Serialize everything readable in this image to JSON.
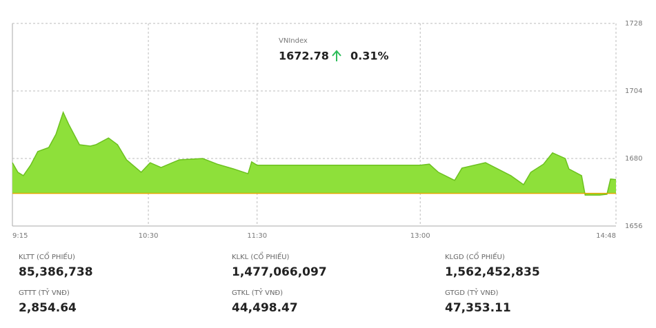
{
  "chart_data": {
    "type": "area",
    "title": "VNIndex",
    "last_value": "1672.78",
    "change": "0.31%",
    "x": [
      "9:15",
      "9:18",
      "9:21",
      "9:25",
      "9:29",
      "9:35",
      "9:39",
      "9:43",
      "9:46",
      "9:52",
      "9:58",
      "10:01",
      "10:08",
      "10:13",
      "10:18",
      "10:26",
      "10:31",
      "10:37",
      "10:47",
      "11:00",
      "11:08",
      "11:17",
      "11:25",
      "11:27",
      "11:30",
      "13:00",
      "13:05",
      "13:10",
      "13:19",
      "13:23",
      "13:36",
      "13:50",
      "13:57",
      "14:01",
      "14:08",
      "14:13",
      "14:20",
      "14:22",
      "14:29",
      "14:31",
      "14:39",
      "14:43",
      "14:45",
      "14:48"
    ],
    "values": [
      1678.5,
      1675.1,
      1673.9,
      1677.6,
      1682.5,
      1683.9,
      1688.6,
      1696.4,
      1692.2,
      1684.9,
      1684.4,
      1684.9,
      1687.3,
      1684.9,
      1679.5,
      1675.1,
      1678.5,
      1676.8,
      1679.5,
      1680.0,
      1678.0,
      1676.3,
      1674.6,
      1678.8,
      1677.6,
      1677.6,
      1678.0,
      1675.1,
      1672.2,
      1676.6,
      1678.5,
      1673.9,
      1670.7,
      1675.1,
      1678.0,
      1682.0,
      1680.0,
      1676.3,
      1673.9,
      1667.0,
      1667.0,
      1667.3,
      1672.7,
      1672.5
    ],
    "reference": 1667.6,
    "color": "#8ee03a",
    "line_color": "#6cc11f",
    "reference_color": "#e0a800",
    "xlim": [
      "9:15",
      "14:48"
    ],
    "xticks": [
      "9:15",
      "10:30",
      "11:30",
      "13:00",
      "14:48"
    ],
    "ylim": [
      1656,
      1728
    ],
    "yticks": [
      1656,
      1680,
      1704,
      1728
    ],
    "grid": true
  },
  "stats": [
    {
      "label": "KLTT (CỔ PHIẾU)",
      "value": "85,386,738"
    },
    {
      "label": "KLKL (CỔ PHIẾU)",
      "value": "1,477,066,097"
    },
    {
      "label": "KLGD (CỔ PHIẾU)",
      "value": "1,562,452,835"
    },
    {
      "label": "GTTT (TỶ VNĐ)",
      "value": "2,854.64"
    },
    {
      "label": "GTKL (TỶ VNĐ)",
      "value": "44,498.47"
    },
    {
      "label": "GTGD (TỶ VNĐ)",
      "value": "47,353.11"
    }
  ]
}
